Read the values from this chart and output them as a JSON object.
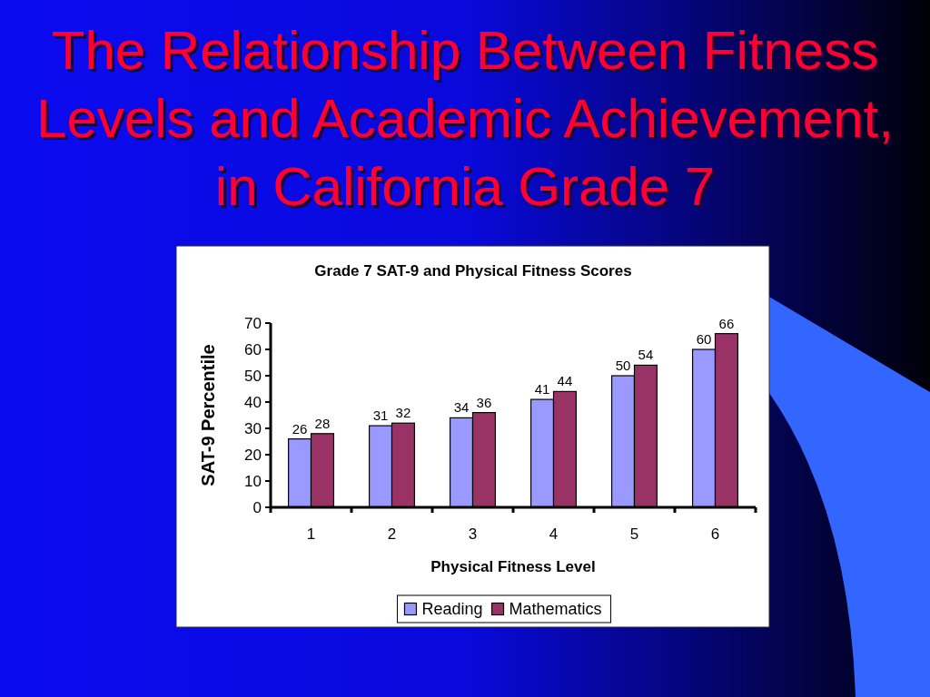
{
  "chart_data": {
    "type": "bar",
    "title": "The Relationship Between Fitness Levels and Academic Achievement, in California Grade 7",
    "subtitle": "Grade 7 SAT-9 and Physical Fitness Scores",
    "xlabel": "Physical Fitness Level",
    "ylabel": "SAT-9 Percentile",
    "categories": [
      "1",
      "2",
      "3",
      "4",
      "5",
      "6"
    ],
    "series": [
      {
        "name": "Reading",
        "color": "#9999ff",
        "values": [
          26,
          31,
          34,
          41,
          50,
          60
        ]
      },
      {
        "name": "Mathematics",
        "color": "#993366",
        "values": [
          28,
          32,
          36,
          44,
          54,
          66
        ]
      }
    ],
    "ylim": [
      0,
      70
    ],
    "yticks": [
      0,
      10,
      20,
      30,
      40,
      50,
      60,
      70
    ],
    "data_labels": true,
    "legend": "bottom"
  }
}
